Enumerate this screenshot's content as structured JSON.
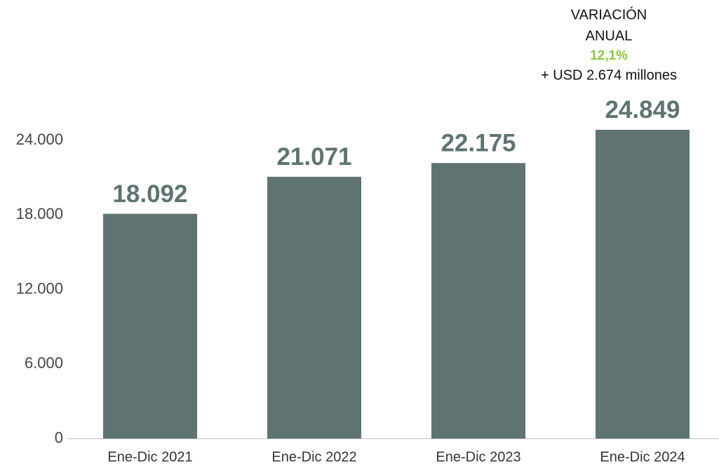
{
  "chart_data": {
    "type": "bar",
    "categories": [
      "Ene-Dic 2021",
      "Ene-Dic 2022",
      "Ene-Dic 2023",
      "Ene-Dic 2024"
    ],
    "values": [
      18092,
      21071,
      22175,
      24849
    ],
    "value_labels": [
      "18.092",
      "21.071",
      "22.175",
      "24.849"
    ],
    "color": "#5f7472",
    "ylim": [
      0,
      28000
    ],
    "yticks": [
      0,
      {
        "value": 6000,
        "label": "6.000"
      },
      {
        "value": 12000,
        "label": "12.000"
      },
      {
        "value": 18000,
        "label": "18.000"
      },
      {
        "value": 24000,
        "label": "24.000"
      }
    ],
    "grid": false,
    "annotation": [
      "VARIACIÓN",
      "ANUAL",
      "12,1%",
      "+ USD 2.674 millones"
    ],
    "annotation_highlight_color": "#8cc63f"
  }
}
